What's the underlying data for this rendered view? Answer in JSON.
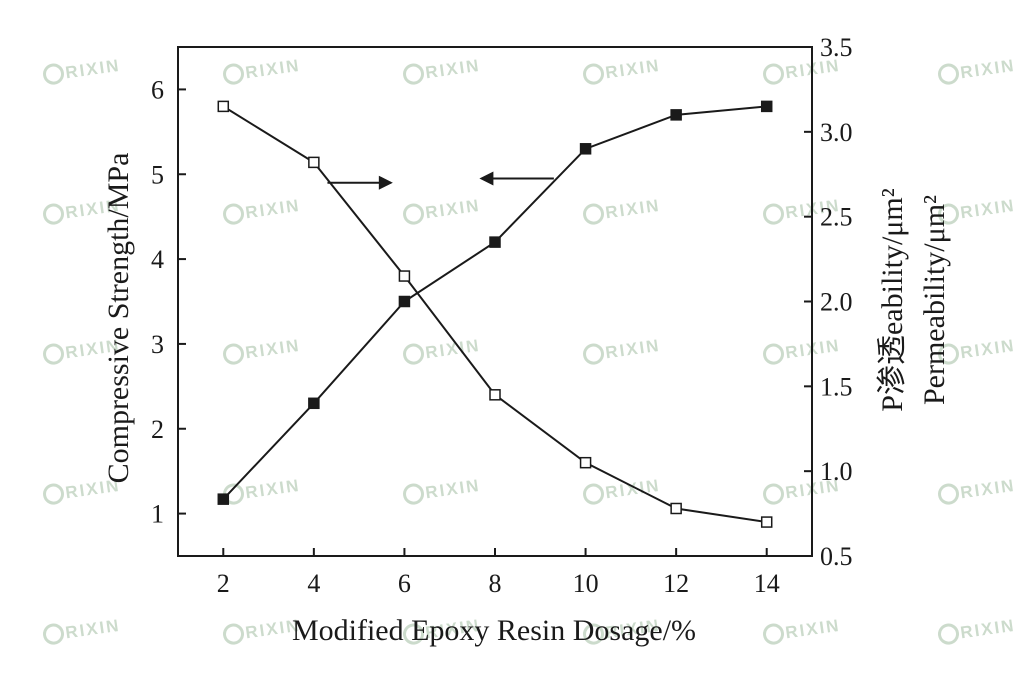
{
  "chart_data": {
    "type": "line",
    "title": "",
    "x": [
      2,
      4,
      6,
      8,
      10,
      12,
      14
    ],
    "xlabel": "Modified Epoxy Resin Dosage/%",
    "xlim": [
      1,
      15
    ],
    "xticks": [
      2,
      4,
      6,
      8,
      10,
      12,
      14
    ],
    "ylabel": "Compressive Strength/MPa",
    "ylim": [
      0.5,
      6.5
    ],
    "yticks": [
      1,
      2,
      3,
      4,
      5,
      6
    ],
    "y2label_lines": [
      "P渗透eability/μm²",
      "Permeability/μm²"
    ],
    "y2lim": [
      0.5,
      3.5
    ],
    "y2ticks": [
      "0.5",
      "1.0",
      "1.5",
      "2.0",
      "2.5",
      "3.0",
      "3.5"
    ],
    "grid": false,
    "series": [
      {
        "marker": "filled-square",
        "axis": "left",
        "values": [
          1.17,
          2.3,
          3.5,
          4.2,
          5.3,
          5.7,
          5.8
        ]
      },
      {
        "marker": "open-square",
        "axis": "right",
        "values": [
          3.15,
          2.82,
          2.15,
          1.45,
          1.05,
          0.78,
          0.7
        ]
      }
    ],
    "annotations": [
      {
        "type": "arrow",
        "direction": "right",
        "points_to_axis": "right"
      },
      {
        "type": "arrow",
        "direction": "left",
        "points_to_axis": "left"
      }
    ],
    "colors": {
      "line": "#1a1a1a",
      "frame": "#1a1a1a",
      "background": "#ffffff"
    }
  },
  "watermark": {
    "text": "RIXIN",
    "color": "#9bb89a"
  }
}
